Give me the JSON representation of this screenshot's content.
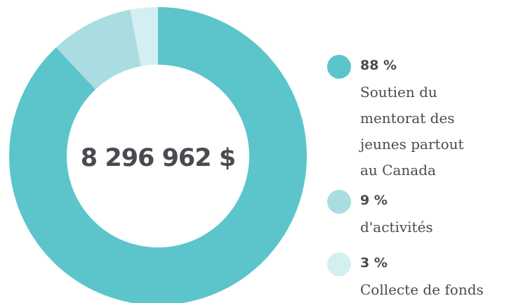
{
  "chart_data": {
    "type": "donut",
    "center_label": "8 296 962 $",
    "categories": [
      "Soutien du mentorat des jeunes partout au Canada",
      "d'activités",
      "Collecte de fonds"
    ],
    "values": [
      88,
      9,
      3
    ],
    "value_labels": [
      "88 %",
      "9 %",
      "3 %"
    ],
    "colors": [
      "#5bc5cb",
      "#a9dde1",
      "#d4eff1"
    ]
  }
}
